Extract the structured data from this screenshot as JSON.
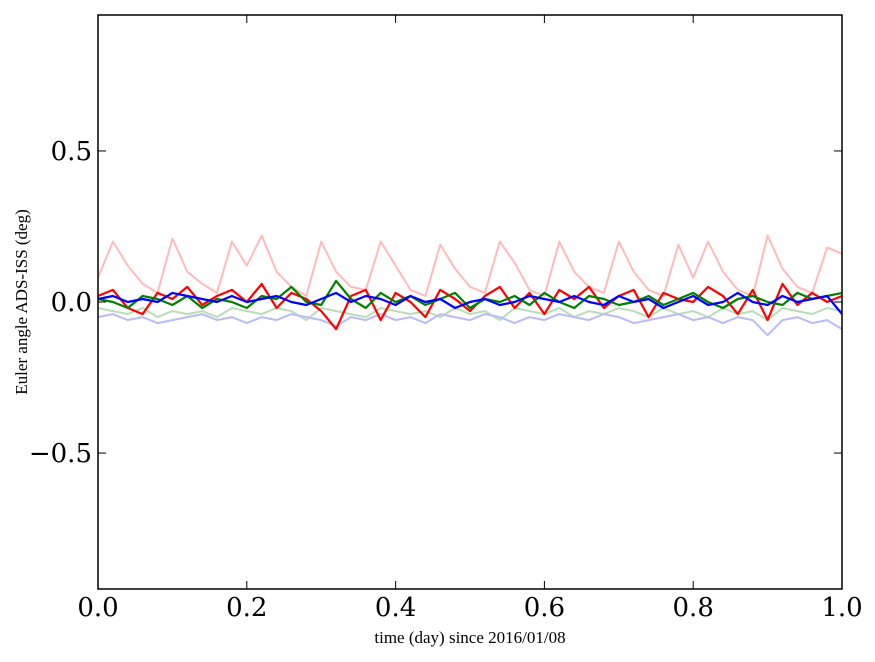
{
  "chart_data": {
    "type": "line",
    "title": "",
    "xlabel": "time (day) since 2016/01/08",
    "ylabel": "Euler angle ADS-ISS (deg)",
    "xlim": [
      0.0,
      1.0
    ],
    "ylim": [
      -0.95,
      0.95
    ],
    "grid": false,
    "legend": "none",
    "x_ticks": [
      0.0,
      0.2,
      0.4,
      0.6,
      0.8,
      1.0
    ],
    "x_tick_labels": [
      "0.0",
      "0.2",
      "0.4",
      "0.6",
      "0.8",
      "1.0"
    ],
    "y_ticks": [
      -0.5,
      0.0,
      0.5
    ],
    "y_tick_labels": [
      "−0.5",
      "0.0",
      "0.5"
    ],
    "x": [
      0.0,
      0.02,
      0.04,
      0.06,
      0.08,
      0.1,
      0.12,
      0.14,
      0.16,
      0.18,
      0.2,
      0.22,
      0.24,
      0.26,
      0.28,
      0.3,
      0.32,
      0.34,
      0.36,
      0.38,
      0.4,
      0.42,
      0.44,
      0.46,
      0.48,
      0.5,
      0.52,
      0.54,
      0.56,
      0.58,
      0.6,
      0.62,
      0.64,
      0.66,
      0.68,
      0.7,
      0.72,
      0.74,
      0.76,
      0.78,
      0.8,
      0.82,
      0.84,
      0.86,
      0.88,
      0.9,
      0.92,
      0.94,
      0.96,
      0.98,
      1.0
    ],
    "series": [
      {
        "color": "#ffbbbb",
        "values": [
          0.08,
          0.2,
          0.12,
          0.06,
          0.03,
          0.21,
          0.1,
          0.06,
          0.03,
          0.2,
          0.12,
          0.22,
          0.1,
          0.05,
          0.02,
          0.2,
          0.1,
          0.05,
          0.04,
          0.2,
          0.12,
          0.04,
          0.02,
          0.19,
          0.11,
          0.05,
          0.03,
          0.2,
          0.13,
          0.04,
          0.02,
          0.2,
          0.1,
          0.05,
          0.03,
          0.2,
          0.1,
          0.04,
          0.02,
          0.19,
          0.08,
          0.2,
          0.1,
          0.04,
          0.02,
          0.22,
          0.11,
          0.05,
          0.03,
          0.18,
          0.16
        ]
      },
      {
        "color": "#b9ddb9",
        "values": [
          -0.02,
          -0.03,
          -0.04,
          -0.02,
          -0.05,
          -0.03,
          -0.04,
          -0.03,
          -0.05,
          -0.02,
          -0.03,
          -0.04,
          -0.02,
          -0.03,
          -0.06,
          -0.02,
          -0.03,
          -0.04,
          -0.05,
          -0.02,
          -0.03,
          -0.04,
          -0.03,
          -0.05,
          -0.02,
          -0.04,
          -0.03,
          -0.06,
          -0.02,
          -0.03,
          -0.04,
          -0.02,
          -0.05,
          -0.03,
          -0.04,
          -0.02,
          -0.03,
          -0.05,
          -0.02,
          -0.04,
          -0.03,
          -0.05,
          -0.02,
          -0.04,
          -0.03,
          -0.06,
          -0.02,
          -0.03,
          -0.04,
          -0.02,
          -0.03
        ]
      },
      {
        "color": "#bbbbf5",
        "values": [
          -0.05,
          -0.04,
          -0.06,
          -0.05,
          -0.07,
          -0.06,
          -0.05,
          -0.04,
          -0.06,
          -0.05,
          -0.07,
          -0.05,
          -0.06,
          -0.04,
          -0.05,
          -0.06,
          -0.08,
          -0.05,
          -0.06,
          -0.04,
          -0.06,
          -0.05,
          -0.07,
          -0.04,
          -0.05,
          -0.06,
          -0.04,
          -0.05,
          -0.07,
          -0.05,
          -0.06,
          -0.04,
          -0.05,
          -0.06,
          -0.04,
          -0.05,
          -0.07,
          -0.06,
          -0.05,
          -0.04,
          -0.06,
          -0.05,
          -0.07,
          -0.05,
          -0.06,
          -0.11,
          -0.06,
          -0.05,
          -0.07,
          -0.06,
          -0.09
        ]
      },
      {
        "color": "#ff0000",
        "values": [
          0.02,
          0.04,
          -0.02,
          -0.04,
          0.03,
          0.01,
          0.05,
          -0.01,
          0.02,
          0.04,
          0.0,
          0.06,
          -0.02,
          0.03,
          0.01,
          -0.03,
          -0.09,
          0.02,
          0.04,
          -0.06,
          0.03,
          0.0,
          -0.05,
          0.04,
          0.01,
          -0.03,
          0.02,
          0.05,
          -0.02,
          0.03,
          -0.04,
          0.04,
          0.01,
          0.05,
          -0.02,
          0.02,
          0.04,
          -0.05,
          0.03,
          0.01,
          0.0,
          0.05,
          0.02,
          -0.04,
          0.04,
          -0.06,
          0.06,
          -0.01,
          0.03,
          0.0,
          0.02
        ]
      },
      {
        "color": "#008000",
        "values": [
          0.01,
          0.0,
          -0.02,
          0.02,
          0.01,
          -0.01,
          0.02,
          -0.02,
          0.01,
          0.0,
          -0.02,
          0.02,
          0.01,
          0.05,
          0.0,
          -0.01,
          0.07,
          0.01,
          -0.02,
          0.03,
          0.0,
          0.02,
          -0.01,
          0.01,
          0.03,
          -0.02,
          0.01,
          0.0,
          0.02,
          -0.01,
          0.03,
          0.0,
          -0.02,
          0.02,
          0.01,
          -0.01,
          0.0,
          0.02,
          -0.01,
          0.01,
          0.03,
          0.0,
          -0.02,
          0.01,
          0.02,
          0.0,
          -0.01,
          0.03,
          0.01,
          0.02,
          0.03
        ]
      },
      {
        "color": "#0000ff",
        "values": [
          0.01,
          0.02,
          0.0,
          0.01,
          0.0,
          0.03,
          0.02,
          0.01,
          0.0,
          0.02,
          0.0,
          0.01,
          0.02,
          0.0,
          -0.01,
          0.01,
          0.03,
          0.0,
          0.02,
          0.01,
          -0.01,
          0.02,
          0.0,
          0.01,
          -0.02,
          0.0,
          0.01,
          -0.01,
          0.0,
          0.02,
          0.01,
          0.0,
          0.02,
          0.0,
          -0.01,
          0.02,
          0.0,
          0.01,
          -0.02,
          0.0,
          0.02,
          -0.01,
          0.0,
          0.03,
          0.0,
          -0.01,
          0.02,
          0.0,
          0.01,
          0.02,
          -0.04
        ]
      }
    ]
  }
}
